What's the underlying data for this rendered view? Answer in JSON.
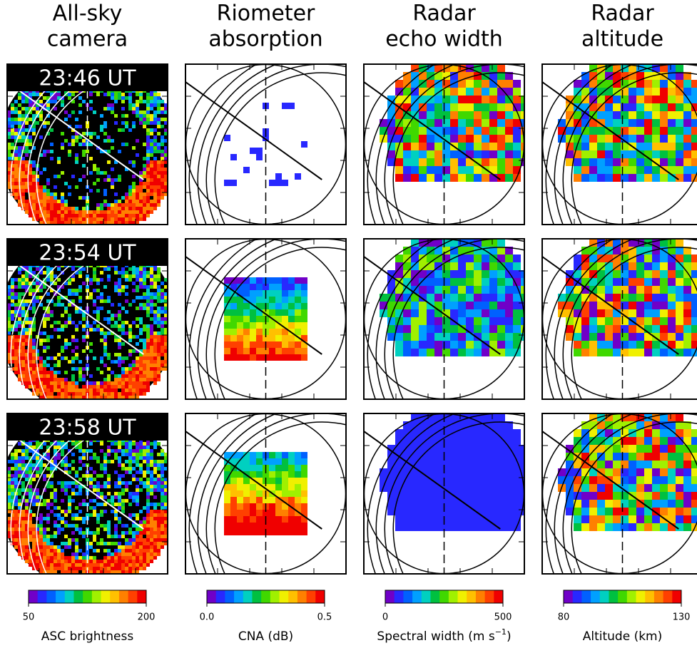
{
  "columns": [
    {
      "title": [
        "All-sky",
        "camera"
      ],
      "colorbar": {
        "ticks": [
          50,
          200
        ],
        "label": [
          "ASC brightness"
        ]
      }
    },
    {
      "title": [
        "Riometer",
        "absorption"
      ],
      "colorbar": {
        "ticks": [
          {
            "value": 0,
            "label": "0.0"
          },
          0.5
        ],
        "label": [
          "CNA (dB)"
        ]
      }
    },
    {
      "title": [
        "Radar",
        "echo width"
      ],
      "colorbar": {
        "ticks": [
          0,
          500
        ],
        "label": [
          "Spectral width (m s",
          "−1",
          ")"
        ]
      }
    },
    {
      "title": [
        "Radar",
        "altitude"
      ],
      "colorbar": {
        "ticks": [
          80,
          130
        ],
        "label": [
          "Altitude (km)"
        ]
      }
    }
  ],
  "rows": [
    {
      "time": "23:46 UT"
    },
    {
      "time": "23:54 UT"
    },
    {
      "time": "23:58 UT"
    }
  ]
}
